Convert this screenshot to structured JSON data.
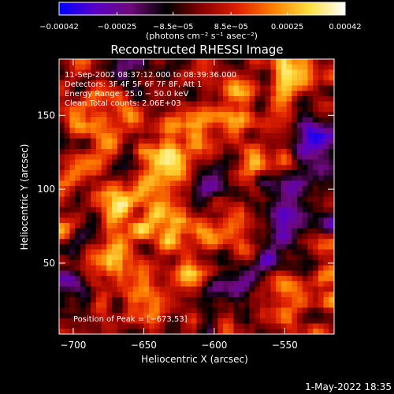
{
  "chart_data": {
    "type": "heatmap",
    "title": "Reconstructed RHESSI Image",
    "xlabel": "Heliocentric X (arcsec)",
    "ylabel": "Heliocentric Y (arcsec)",
    "xlim": [
      -710,
      -515
    ],
    "ylim": [
      2,
      188
    ],
    "x_ticks": [
      {
        "value": -700,
        "label": "−700"
      },
      {
        "value": -650,
        "label": "−650"
      },
      {
        "value": -600,
        "label": "−600"
      },
      {
        "value": -550,
        "label": "−550"
      }
    ],
    "y_ticks": [
      {
        "value": 50,
        "label": "50"
      },
      {
        "value": 100,
        "label": "100"
      },
      {
        "value": 150,
        "label": "150"
      }
    ],
    "colorbar": {
      "min": -0.00042,
      "max": 0.00042,
      "unit_label": "(photons cm⁻² s⁻¹ asec⁻²)",
      "ticks": [
        {
          "value": -0.00042,
          "label": "−0.00042"
        },
        {
          "value": -0.00025,
          "label": "−0.00025"
        },
        {
          "value": -8.5e-05,
          "label": "−8.5e−05"
        },
        {
          "value": 8.5e-05,
          "label": "8.5e−05"
        },
        {
          "value": 0.00025,
          "label": "0.00025"
        },
        {
          "value": 0.00042,
          "label": "0.00042"
        }
      ],
      "colors": [
        "#0000ff",
        "#5a00c8",
        "#6e0a78",
        "#000000",
        "#8a0000",
        "#e02000",
        "#ff8000",
        "#ffe040",
        "#ffffff"
      ]
    },
    "grid": false,
    "info_lines": [
      "11-Sep-2002 08:37:12.000 to 08:39:36.000",
      "Detectors: 3F 4F 5F 6F 7F 8F, Att 1",
      "Energy Range: 25.0 − 50.0 keV",
      "Clean    Total counts: 2.06E+03"
    ],
    "peak_label": "Position of Peak = [−673,53]",
    "peak": {
      "x": -673,
      "y": 53
    },
    "bright_sources": [
      {
        "x": -673,
        "y": 53,
        "level": 1.0
      },
      {
        "x": -660,
        "y": 85,
        "level": 0.85
      },
      {
        "x": -630,
        "y": 80,
        "level": 0.8
      },
      {
        "x": -615,
        "y": 135,
        "level": 0.75
      },
      {
        "x": -585,
        "y": 155,
        "level": 0.7
      },
      {
        "x": -680,
        "y": 145,
        "level": 0.7
      },
      {
        "x": -630,
        "y": 110,
        "level": 0.8
      },
      {
        "x": -545,
        "y": 175,
        "level": 0.7
      },
      {
        "x": -540,
        "y": 30,
        "level": 0.75
      },
      {
        "x": -585,
        "y": 75,
        "level": 0.6
      },
      {
        "x": -700,
        "y": 170,
        "level": 0.6
      },
      {
        "x": -620,
        "y": 40,
        "level": 0.6
      },
      {
        "x": -560,
        "y": 120,
        "level": 0.55
      },
      {
        "x": -690,
        "y": 115,
        "level": 0.6
      }
    ],
    "dim_sources": [
      {
        "x": -545,
        "y": 90,
        "level": -0.9
      },
      {
        "x": -590,
        "y": 30,
        "level": -0.7
      },
      {
        "x": -530,
        "y": 130,
        "level": -0.8
      },
      {
        "x": -605,
        "y": 100,
        "level": -0.6
      },
      {
        "x": -555,
        "y": 55,
        "level": -0.6
      },
      {
        "x": -650,
        "y": 180,
        "level": -0.5
      },
      {
        "x": -700,
        "y": 30,
        "level": -0.4
      }
    ]
  },
  "footer": {
    "date": "1-May-2022 18:35"
  }
}
